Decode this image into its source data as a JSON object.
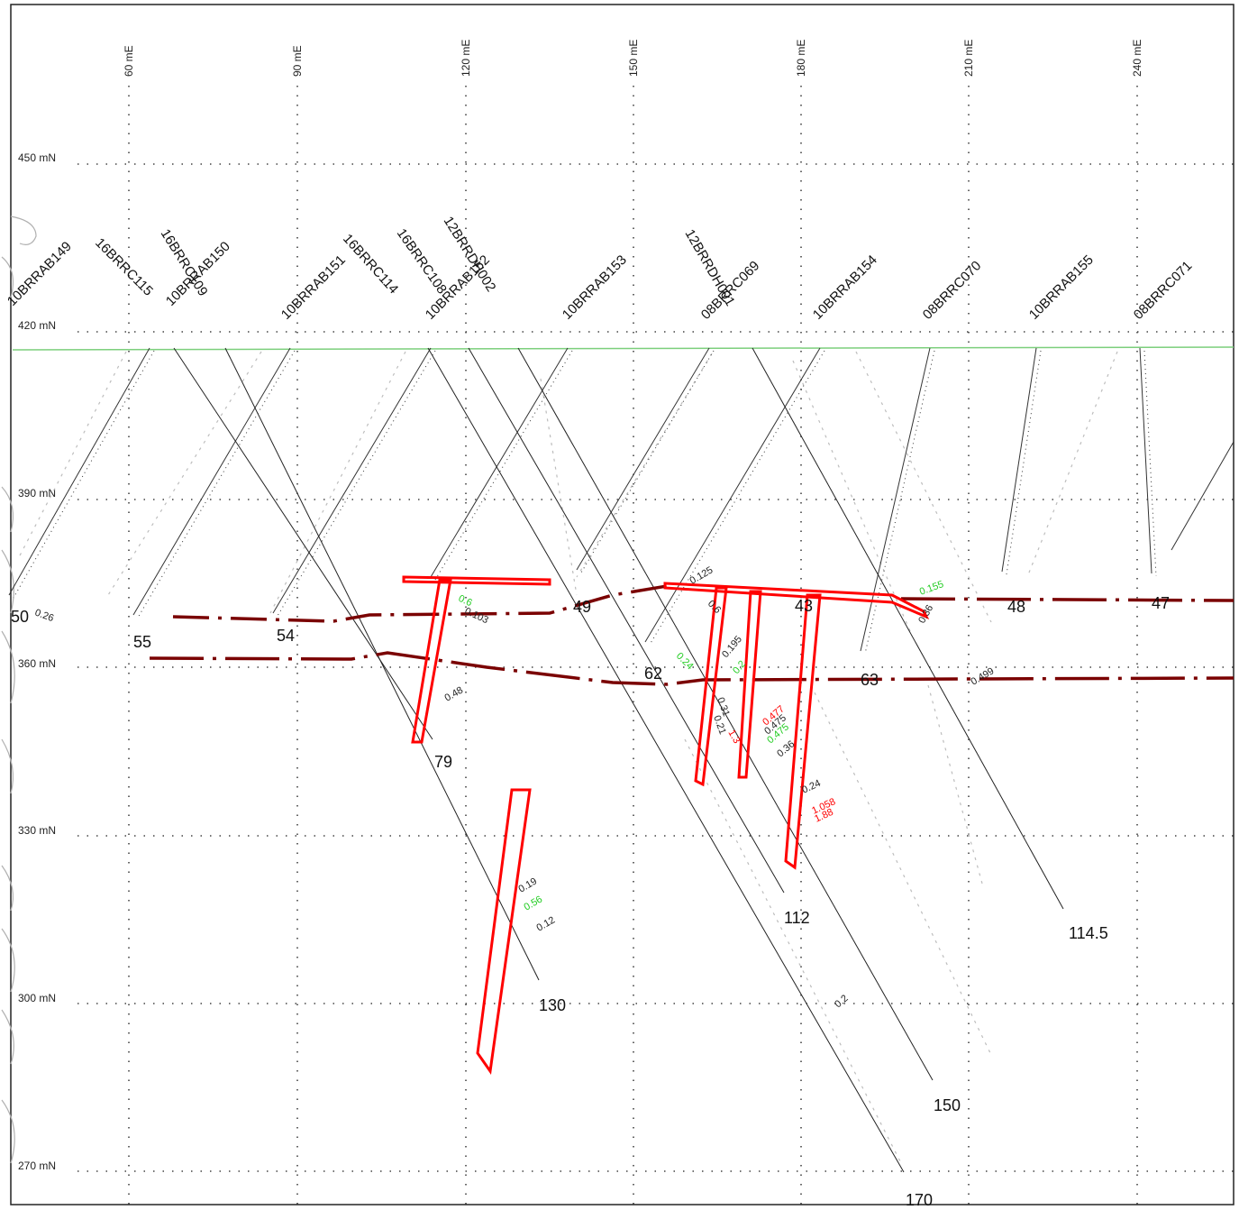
{
  "easting_labels": [
    "60 mE",
    "90 mE",
    "120 mE",
    "150 mE",
    "180 mE",
    "210 mE",
    "240 mE"
  ],
  "northing_labels": [
    "450 mN",
    "420 mN",
    "390 mN",
    "360 mN",
    "330 mN",
    "300 mN",
    "270 mN"
  ],
  "colors": {
    "topography": "#7ccf7c",
    "drillhole": "#111111",
    "grade_red": "#ff0000",
    "grade_green": "#22cc22",
    "lode_boundary": "#7a0000",
    "wireframe": "#ff0000"
  },
  "drillholes": [
    {
      "name": "10BRRAB149",
      "depth_label": "50"
    },
    {
      "name": "16BRRC115",
      "depth_label": "55"
    },
    {
      "name": "16BRRC109",
      "depth_label": ""
    },
    {
      "name": "10BRRAB150",
      "depth_label": ""
    },
    {
      "name": "10BRRAB151",
      "depth_label": "54"
    },
    {
      "name": "16BRRC114",
      "depth_label": ""
    },
    {
      "name": "16BRRC108",
      "depth_label": "79"
    },
    {
      "name": "12BRRDH002",
      "depth_label": "130"
    },
    {
      "name": "10BRRAB152",
      "depth_label": ""
    },
    {
      "name": "10BRRAB153",
      "depth_label": "49"
    },
    {
      "name": "12BRRDH001",
      "depth_label": "170"
    },
    {
      "name": "08BRRC069",
      "depth_label": "112"
    },
    {
      "name": "10BRRAB154",
      "depth_label": "62"
    },
    {
      "name": "08BRRC070",
      "depth_label": "150"
    },
    {
      "name": "10BRRAB155",
      "depth_label": "63"
    },
    {
      "name": "08BRRC071",
      "depth_label": "114.5"
    },
    {
      "name": "",
      "depth_label": "43"
    },
    {
      "name": "",
      "depth_label": "48"
    },
    {
      "name": "",
      "depth_label": "47"
    }
  ],
  "assays": [
    {
      "value": "0.26",
      "color": "black"
    },
    {
      "value": "0.103",
      "color": "black"
    },
    {
      "value": "0.6",
      "color": "green"
    },
    {
      "value": "0.48",
      "color": "black"
    },
    {
      "value": "0.19",
      "color": "black"
    },
    {
      "value": "0.56",
      "color": "green"
    },
    {
      "value": "0.12",
      "color": "black"
    },
    {
      "value": "0.125",
      "color": "black"
    },
    {
      "value": "0.6",
      "color": "black"
    },
    {
      "value": "0.24",
      "color": "green"
    },
    {
      "value": "0.195",
      "color": "black"
    },
    {
      "value": "0.2",
      "color": "green"
    },
    {
      "value": "0.31",
      "color": "black"
    },
    {
      "value": "0.21",
      "color": "black"
    },
    {
      "value": "1.3",
      "color": "red"
    },
    {
      "value": "0.477",
      "color": "red"
    },
    {
      "value": "0.475",
      "color": "black"
    },
    {
      "value": "0.475",
      "color": "green"
    },
    {
      "value": "0.36",
      "color": "black"
    },
    {
      "value": "0.24",
      "color": "black"
    },
    {
      "value": "1.058",
      "color": "red"
    },
    {
      "value": "1.88",
      "color": "red"
    },
    {
      "value": "0.155",
      "color": "green"
    },
    {
      "value": "0.36",
      "color": "black"
    },
    {
      "value": "0.499",
      "color": "black"
    },
    {
      "value": "0.2",
      "color": "black"
    }
  ]
}
